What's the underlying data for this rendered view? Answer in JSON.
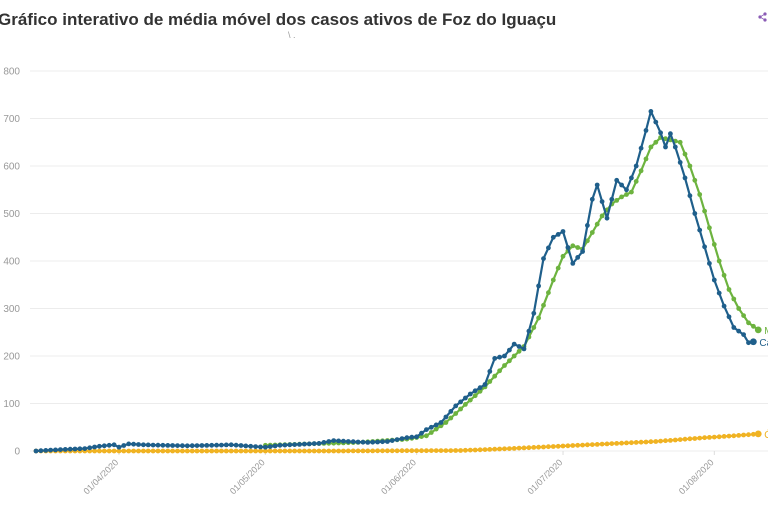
{
  "header": {
    "title": "Gráfico interativo de média móvel dos casos ativos de Foz do Iguaçu",
    "subtitle": "\\ ."
  },
  "colors": {
    "media_movel": "#6db33f",
    "casos_ativos": "#1f5f8b",
    "obitos": "#f0b323",
    "grid": "#ececec",
    "axis_text": "#999999",
    "title": "#333333"
  },
  "chart_data": {
    "type": "line",
    "title": "Gráfico interativo de média móvel dos casos ativos de Foz do Iguaçu",
    "xlabel": "",
    "ylabel": "",
    "ylim": [
      0,
      800
    ],
    "yticks": [
      0,
      100,
      200,
      300,
      400,
      500,
      600,
      700,
      800
    ],
    "x_start": "2020-03-15",
    "x_end": "2020-08-12",
    "x_ticks": [
      {
        "date": "2020-04-01",
        "label": "01/04/2020"
      },
      {
        "date": "2020-05-01",
        "label": "01/05/2020"
      },
      {
        "date": "2020-06-01",
        "label": "01/06/2020"
      },
      {
        "date": "2020-07-01",
        "label": "01/07/2020"
      },
      {
        "date": "2020-08-01",
        "label": "01/08/2020"
      }
    ],
    "grid": true,
    "legend": "end-labels",
    "series": [
      {
        "name": "Casos ativos",
        "end_label": "Ca",
        "color": "#1f5f8b",
        "points": [
          [
            "2020-03-15",
            0
          ],
          [
            "2020-03-20",
            3
          ],
          [
            "2020-03-25",
            5
          ],
          [
            "2020-03-28",
            10
          ],
          [
            "2020-03-31",
            13
          ],
          [
            "2020-04-01",
            8
          ],
          [
            "2020-04-03",
            15
          ],
          [
            "2020-04-06",
            13
          ],
          [
            "2020-04-10",
            12
          ],
          [
            "2020-04-15",
            11
          ],
          [
            "2020-04-20",
            12
          ],
          [
            "2020-04-24",
            13
          ],
          [
            "2020-04-28",
            10
          ],
          [
            "2020-05-01",
            8
          ],
          [
            "2020-05-04",
            12
          ],
          [
            "2020-05-08",
            14
          ],
          [
            "2020-05-12",
            16
          ],
          [
            "2020-05-15",
            22
          ],
          [
            "2020-05-18",
            20
          ],
          [
            "2020-05-22",
            18
          ],
          [
            "2020-05-26",
            20
          ],
          [
            "2020-05-30",
            28
          ],
          [
            "2020-06-01",
            30
          ],
          [
            "2020-06-03",
            45
          ],
          [
            "2020-06-06",
            60
          ],
          [
            "2020-06-09",
            95
          ],
          [
            "2020-06-12",
            120
          ],
          [
            "2020-06-15",
            140
          ],
          [
            "2020-06-17",
            195
          ],
          [
            "2020-06-19",
            200
          ],
          [
            "2020-06-21",
            225
          ],
          [
            "2020-06-23",
            215
          ],
          [
            "2020-06-25",
            290
          ],
          [
            "2020-06-27",
            405
          ],
          [
            "2020-06-29",
            450
          ],
          [
            "2020-07-01",
            462
          ],
          [
            "2020-07-03",
            395
          ],
          [
            "2020-07-05",
            420
          ],
          [
            "2020-07-07",
            530
          ],
          [
            "2020-07-08",
            560
          ],
          [
            "2020-07-10",
            490
          ],
          [
            "2020-07-12",
            570
          ],
          [
            "2020-07-14",
            550
          ],
          [
            "2020-07-16",
            600
          ],
          [
            "2020-07-18",
            675
          ],
          [
            "2020-07-19",
            715
          ],
          [
            "2020-07-21",
            670
          ],
          [
            "2020-07-22",
            640
          ],
          [
            "2020-07-23",
            668
          ],
          [
            "2020-07-24",
            640
          ],
          [
            "2020-07-26",
            575
          ],
          [
            "2020-07-28",
            500
          ],
          [
            "2020-07-30",
            430
          ],
          [
            "2020-08-01",
            360
          ],
          [
            "2020-08-03",
            305
          ],
          [
            "2020-08-05",
            260
          ],
          [
            "2020-08-07",
            245
          ],
          [
            "2020-08-08",
            228
          ],
          [
            "2020-08-09",
            230
          ]
        ]
      },
      {
        "name": "Média móvel",
        "end_label": "M",
        "color": "#6db33f",
        "points": [
          [
            "2020-05-01",
            12
          ],
          [
            "2020-05-10",
            15
          ],
          [
            "2020-05-20",
            18
          ],
          [
            "2020-05-30",
            25
          ],
          [
            "2020-06-03",
            32
          ],
          [
            "2020-06-07",
            60
          ],
          [
            "2020-06-11",
            98
          ],
          [
            "2020-06-15",
            135
          ],
          [
            "2020-06-19",
            180
          ],
          [
            "2020-06-23",
            220
          ],
          [
            "2020-06-26",
            280
          ],
          [
            "2020-06-29",
            360
          ],
          [
            "2020-07-01",
            410
          ],
          [
            "2020-07-03",
            432
          ],
          [
            "2020-07-05",
            425
          ],
          [
            "2020-07-07",
            460
          ],
          [
            "2020-07-09",
            495
          ],
          [
            "2020-07-11",
            520
          ],
          [
            "2020-07-13",
            535
          ],
          [
            "2020-07-15",
            545
          ],
          [
            "2020-07-17",
            590
          ],
          [
            "2020-07-19",
            640
          ],
          [
            "2020-07-21",
            660
          ],
          [
            "2020-07-23",
            655
          ],
          [
            "2020-07-25",
            650
          ],
          [
            "2020-07-27",
            600
          ],
          [
            "2020-07-29",
            540
          ],
          [
            "2020-07-31",
            470
          ],
          [
            "2020-08-02",
            400
          ],
          [
            "2020-08-04",
            340
          ],
          [
            "2020-08-06",
            300
          ],
          [
            "2020-08-08",
            270
          ],
          [
            "2020-08-10",
            255
          ]
        ]
      },
      {
        "name": "Óbitos",
        "end_label": "Ó",
        "color": "#f0b323",
        "points": [
          [
            "2020-03-15",
            0
          ],
          [
            "2020-05-15",
            0
          ],
          [
            "2020-06-10",
            1
          ],
          [
            "2020-06-20",
            5
          ],
          [
            "2020-06-30",
            10
          ],
          [
            "2020-07-10",
            15
          ],
          [
            "2020-07-20",
            20
          ],
          [
            "2020-07-30",
            28
          ],
          [
            "2020-08-05",
            32
          ],
          [
            "2020-08-10",
            36
          ]
        ]
      }
    ]
  }
}
